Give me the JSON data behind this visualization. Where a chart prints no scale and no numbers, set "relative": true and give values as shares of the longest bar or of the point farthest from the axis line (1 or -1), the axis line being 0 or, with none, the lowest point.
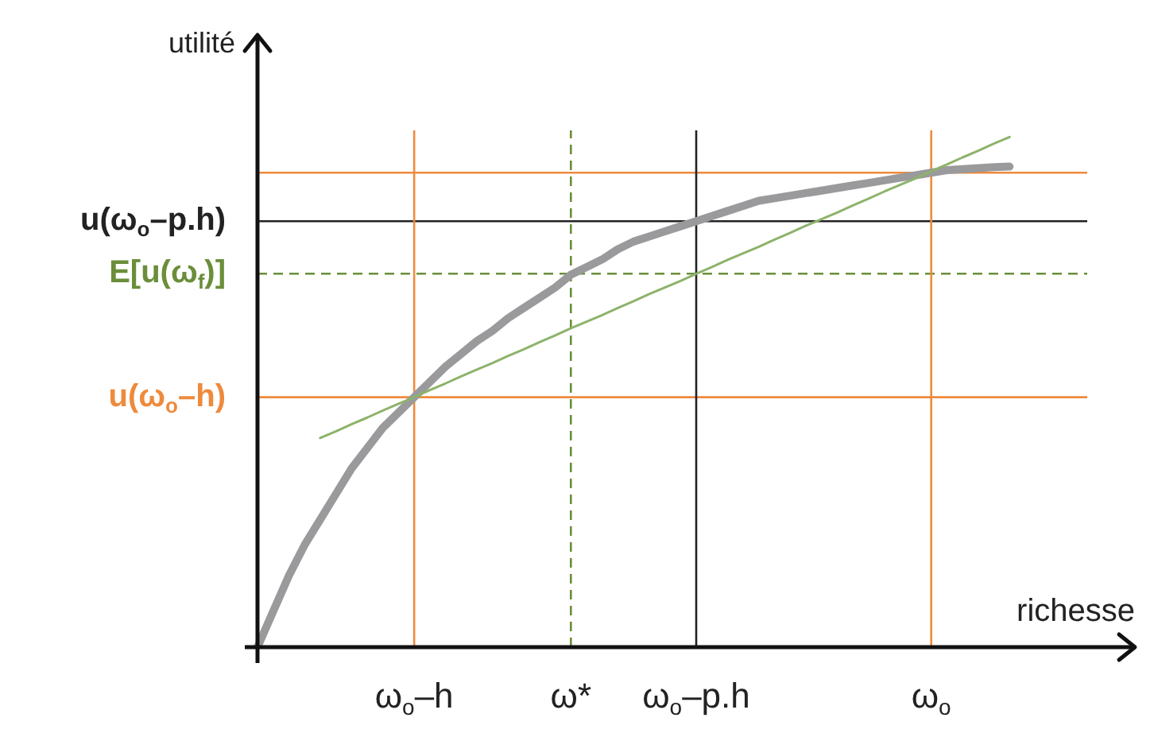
{
  "chart_data": {
    "type": "line",
    "relative": true,
    "xlabel": "richesse",
    "ylabel": "utilité",
    "legend": false,
    "categories": [
      null,
      null,
      null,
      null,
      null,
      null,
      null,
      null,
      null,
      null,
      "ω$_{o}$–h",
      null,
      null,
      null,
      null,
      null,
      null,
      null,
      null,
      null,
      "ω*",
      null,
      null,
      null,
      null,
      null,
      null,
      null,
      "ω$_{o}$–p.h",
      null,
      null,
      null,
      null,
      null,
      null,
      null,
      null,
      null,
      null,
      null,
      null,
      null,
      null,
      "ω$_{o}$",
      null,
      null,
      null,
      null,
      null,
      null,
      null,
      null,
      null,
      null,
      null,
      null,
      null
    ],
    "series": [
      {
        "color": "#9a9a9c",
        "values": [
          0,
          0.07,
          0.14,
          0.2,
          0.25,
          0.3,
          0.35,
          0.39,
          0.43,
          0.46,
          0.49,
          0.52,
          0.55,
          0.575,
          0.6,
          0.62,
          0.645,
          0.665,
          0.685,
          0.705,
          0.73,
          0.745,
          0.76,
          0.78,
          0.795,
          0.805,
          0.815,
          0.825,
          0.835,
          0.845,
          0.855,
          0.865,
          0.875,
          0.88,
          0.885,
          0.89,
          0.895,
          0.9,
          0.905,
          0.91,
          0.915,
          0.92,
          0.925,
          0.93,
          0.935,
          0.937,
          0.939,
          0.941,
          0.942,
          null,
          null,
          null,
          null,
          null,
          null,
          null,
          null
        ]
      },
      {
        "color": "#8db36a",
        "values": [
          null,
          null,
          null,
          null,
          0.41,
          0.423,
          0.437,
          0.45,
          0.464,
          0.477,
          0.49,
          0.504,
          0.517,
          0.531,
          0.544,
          0.557,
          0.571,
          0.584,
          0.598,
          0.611,
          0.625,
          0.638,
          0.651,
          0.665,
          0.678,
          0.692,
          0.705,
          0.718,
          0.732,
          0.745,
          0.759,
          0.772,
          0.785,
          0.799,
          0.812,
          0.826,
          0.839,
          0.852,
          0.866,
          0.879,
          0.893,
          0.906,
          0.919,
          0.933,
          0.946,
          0.96,
          0.973,
          0.987,
          1,
          null,
          null,
          null,
          null,
          null,
          null,
          null,
          null
        ]
      }
    ],
    "ref_lines": [
      {
        "axis": "y",
        "value": 0.93,
        "color": "#ee8a3c"
      },
      {
        "axis": "y",
        "value": 0.835,
        "label": "u(ω$_{o}$–p.h)",
        "color": "#222222"
      },
      {
        "axis": "y",
        "value": 0.732,
        "label": "E[u(ω$_{f}$)]",
        "color": "#6b8e3a",
        "line_style": "dashed"
      },
      {
        "axis": "y",
        "value": 0.49,
        "label": "u(ω$_{o}$–h)",
        "color": "#ee8a3c"
      },
      {
        "axis": "x",
        "value": "ω$_{o}$–h",
        "color": "#ee8a3c"
      },
      {
        "axis": "x",
        "value": "ω*",
        "color": "#6b8e3a",
        "line_style": "dashed"
      },
      {
        "axis": "x",
        "value": "ω$_{o}$–p.h",
        "color": "#222222"
      },
      {
        "axis": "x",
        "value": "ω$_{o}$",
        "color": "#ee8a3c"
      }
    ]
  }
}
